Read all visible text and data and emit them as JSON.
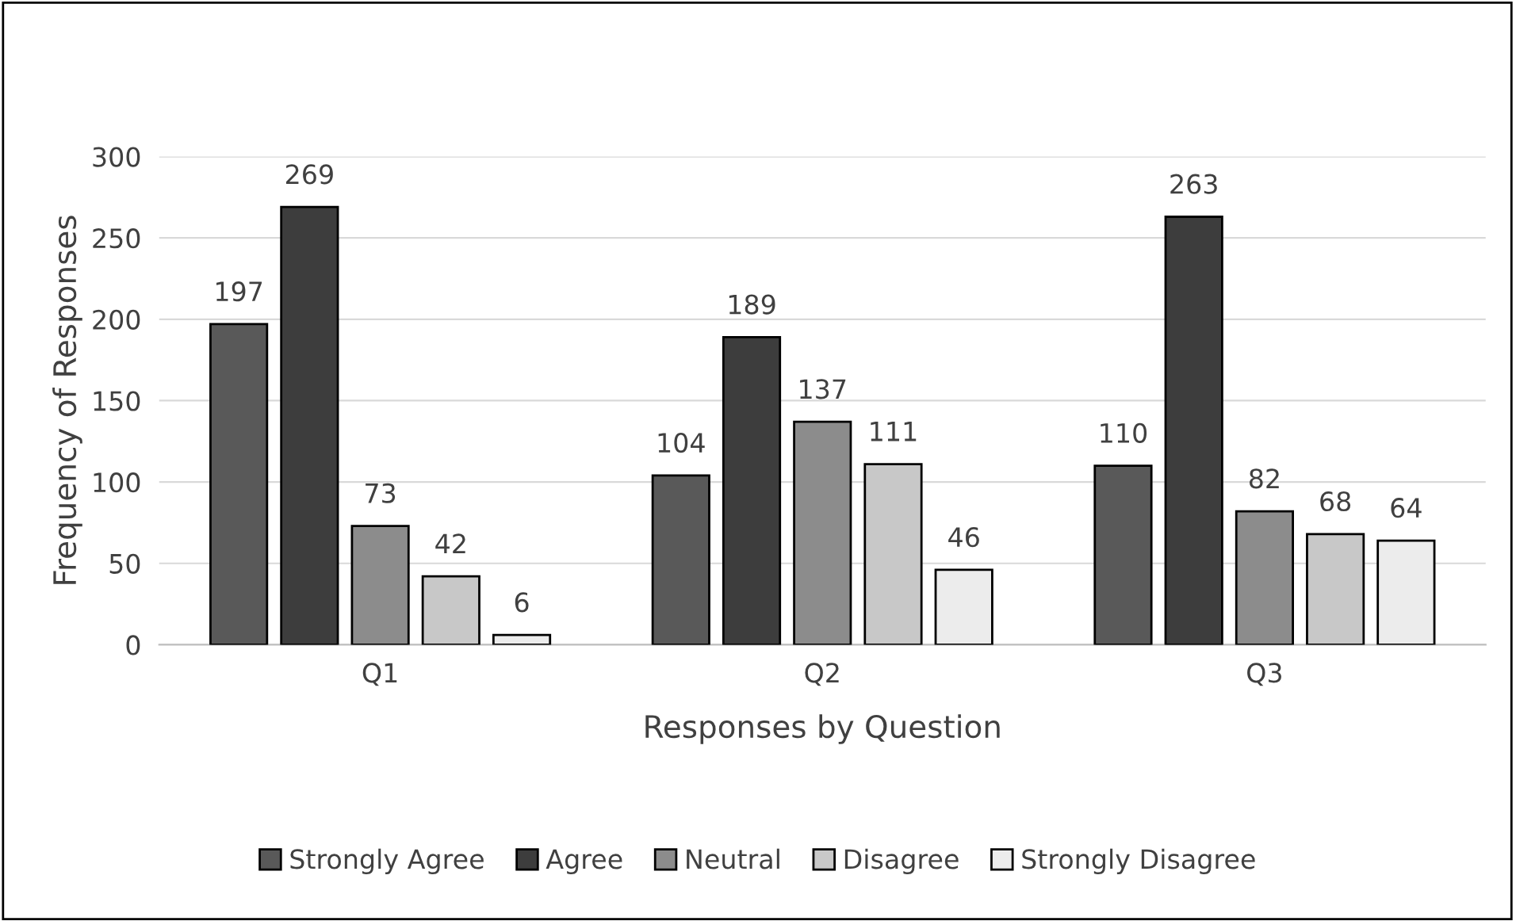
{
  "chart_data": {
    "type": "bar",
    "xlabel": "Responses by Question",
    "ylabel": "Frequency of Responses",
    "categories": [
      "Q1",
      "Q2",
      "Q3"
    ],
    "series": [
      {
        "name": "Strongly Agree",
        "color": "#595959",
        "values": [
          197,
          104,
          110
        ]
      },
      {
        "name": "Agree",
        "color": "#3d3d3d",
        "values": [
          269,
          189,
          263
        ]
      },
      {
        "name": "Neutral",
        "color": "#8c8c8c",
        "values": [
          73,
          137,
          82
        ]
      },
      {
        "name": "Disagree",
        "color": "#c8c8c8",
        "values": [
          42,
          111,
          68
        ]
      },
      {
        "name": "Strongly Disagree",
        "color": "#ececec",
        "values": [
          6,
          46,
          64
        ]
      }
    ],
    "ylim": [
      0,
      300
    ],
    "yticks": [
      0,
      50,
      100,
      150,
      200,
      250,
      300
    ],
    "grid": "y",
    "legend": "bottom",
    "data_labels": true
  }
}
